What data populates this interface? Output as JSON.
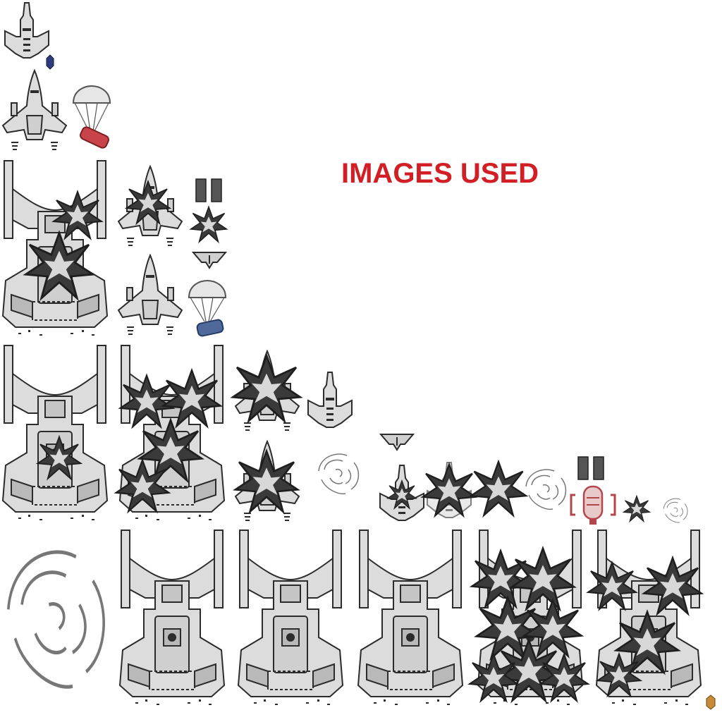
{
  "title": {
    "text": "IMAGES USED",
    "color": "#d21f26"
  },
  "palette": {
    "hull": "#dcdcdc",
    "hull_dark": "#b9b9b9",
    "ink": "#2c2c2c",
    "blast": "#3a3a3a",
    "parachute_red": "#c8444a",
    "parachute_blue": "#4f6a9a",
    "pickup_navy": "#2d3d7c",
    "pickup_orange": "#c98a3a"
  },
  "sprites": {
    "small_ship": "small-ship-sprite",
    "fighter": "fighter-sprite",
    "fighter_damaged": "fighter-damaged-sprite",
    "carrier": "carrier-sprite",
    "carrier_damaged": "carrier-damaged-sprite",
    "explosion_burst": "explosion-burst-sprite",
    "smoke_puff": "smoke-puff-sprite",
    "parachute_red": "parachute-red-sprite",
    "parachute_blue": "parachute-blue-sprite",
    "ammo_bars": "ammo-bars-sprite",
    "capsule_pickup": "capsule-pickup-sprite",
    "chevron_debris": "chevron-debris-sprite",
    "gem_navy": "navy-gem-sprite",
    "gem_orange": "orange-gem-sprite"
  }
}
